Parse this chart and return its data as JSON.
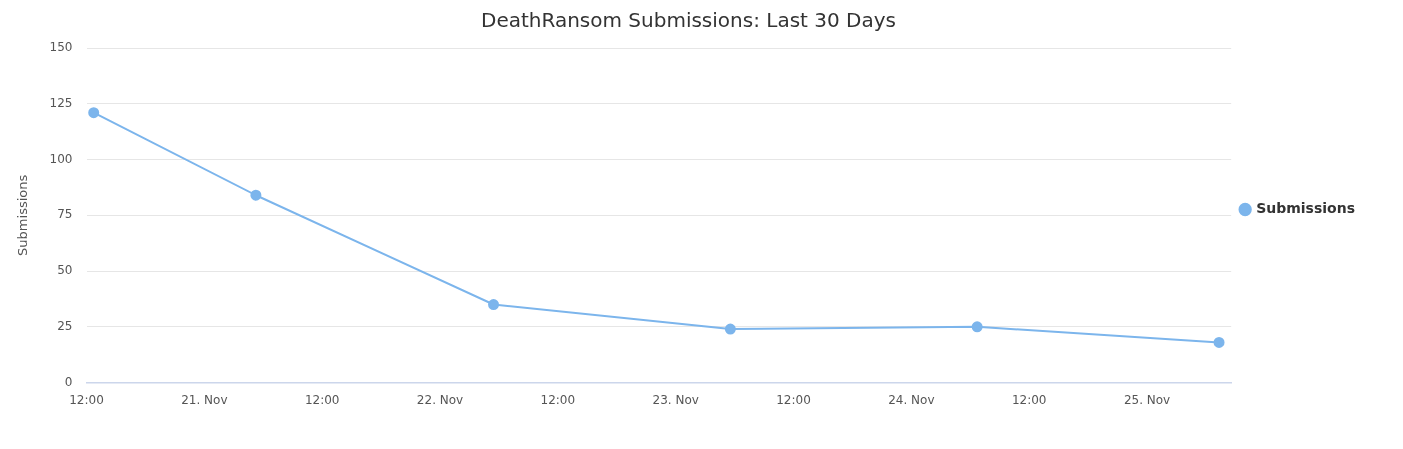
{
  "chart_data": {
    "type": "line",
    "title": "DeathRansom Submissions: Last 30 Days",
    "ylabel": "Submissions",
    "x": [
      "--11-20T12:44",
      "--11-21T05:15",
      "--11-22T05:27",
      "--11-23T05:34",
      "--11-24T06:42",
      "--11-25T07:20"
    ],
    "series": [
      {
        "name": "Submissions",
        "color": "#7cb5ec",
        "values": [
          121,
          84,
          35,
          24,
          25,
          18
        ]
      }
    ],
    "xlim": [
      "--11-20T12:00",
      "--11-25T08:34"
    ],
    "xticks": [
      {
        "value": "--11-20T12:00",
        "label": "12:00"
      },
      {
        "value": "--11-21",
        "label": "21. Nov"
      },
      {
        "value": "--11-21T12:00",
        "label": "12:00"
      },
      {
        "value": "--11-22",
        "label": "22. Nov"
      },
      {
        "value": "--11-22T12:00",
        "label": "12:00"
      },
      {
        "value": "--11-23",
        "label": "23. Nov"
      },
      {
        "value": "--11-23T12:00",
        "label": "12:00"
      },
      {
        "value": "--11-24",
        "label": "24. Nov"
      },
      {
        "value": "--11-24T12:00",
        "label": "12:00"
      },
      {
        "value": "--11-25",
        "label": "25. Nov"
      }
    ],
    "ylim": [
      0,
      150
    ],
    "yticks": [
      0,
      25,
      50,
      75,
      100,
      125,
      150
    ],
    "grid": "y",
    "legend": "right",
    "marker": "circle",
    "line_style": "solid"
  }
}
